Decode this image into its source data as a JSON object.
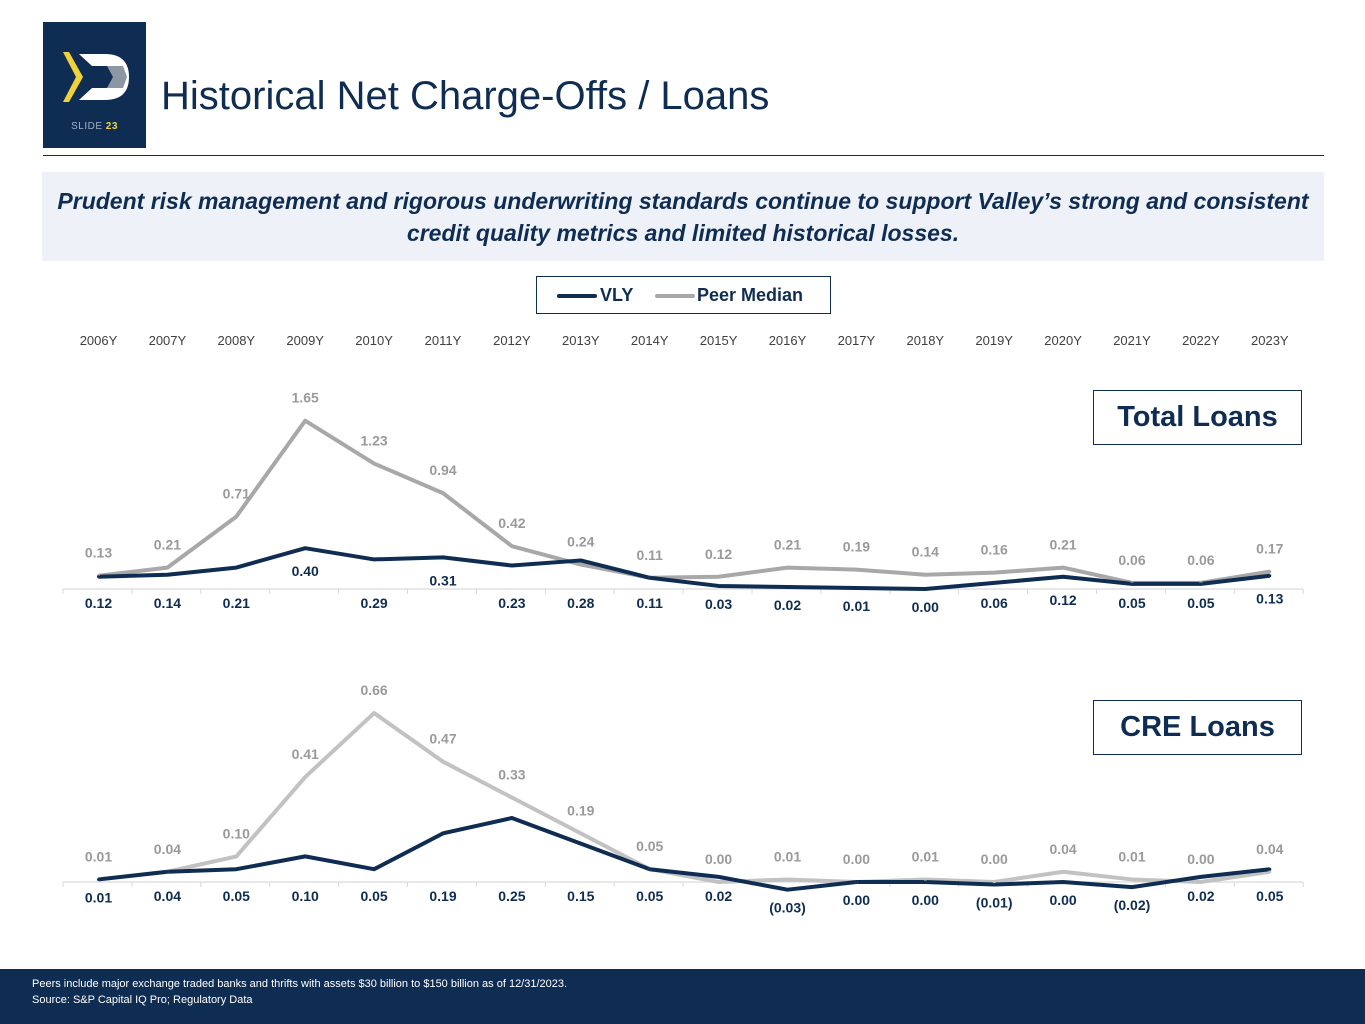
{
  "header": {
    "title": "Historical Net Charge-Offs / Loans",
    "slide_word": "SLIDE",
    "slide_number": "23"
  },
  "banner": {
    "text": "Prudent risk management and rigorous underwriting standards continue to support Valley’s strong and consistent credit quality metrics and limited historical losses."
  },
  "legend": {
    "vly_label": "VLY",
    "peer_label": "Peer Median"
  },
  "colors": {
    "navy": "#0f2d52",
    "peer_gray_total": "#a8a8a8",
    "peer_gray_cre": "#c2c2c2",
    "gold": "#f0d33a",
    "logo_gray": "#8c97a3"
  },
  "chart_data": [
    {
      "type": "line",
      "title": "Total Loans",
      "categories": [
        "2006Y",
        "2007Y",
        "2008Y",
        "2009Y",
        "2010Y",
        "2011Y",
        "2012Y",
        "2013Y",
        "2014Y",
        "2015Y",
        "2016Y",
        "2017Y",
        "2018Y",
        "2019Y",
        "2020Y",
        "2021Y",
        "2022Y",
        "2023Y"
      ],
      "series": [
        {
          "name": "VLY",
          "values": [
            0.12,
            0.14,
            0.21,
            0.4,
            0.29,
            0.31,
            0.23,
            0.28,
            0.11,
            0.03,
            0.02,
            0.01,
            0.0,
            0.06,
            0.12,
            0.05,
            0.05,
            0.13
          ],
          "labels": [
            "0.12",
            "0.14",
            "0.21",
            "0.40",
            "0.29",
            "0.31",
            "0.23",
            "0.28",
            "0.11",
            "0.03",
            "0.02",
            "0.01",
            "0.00",
            "0.06",
            "0.12",
            "0.05",
            "0.05",
            "0.13"
          ]
        },
        {
          "name": "Peer Median",
          "values": [
            0.13,
            0.21,
            0.71,
            1.65,
            1.23,
            0.94,
            0.42,
            0.24,
            0.11,
            0.12,
            0.21,
            0.19,
            0.14,
            0.16,
            0.21,
            0.06,
            0.06,
            0.17
          ],
          "labels": [
            "0.13",
            "0.21",
            "0.71",
            "1.65",
            "1.23",
            "0.94",
            "0.42",
            "0.24",
            "0.11",
            "0.12",
            "0.21",
            "0.19",
            "0.14",
            "0.16",
            "0.21",
            "0.06",
            "0.06",
            "0.17"
          ]
        }
      ],
      "ylim": [
        0,
        1.75
      ],
      "legend": "top-center"
    },
    {
      "type": "line",
      "title": "CRE Loans",
      "categories": [
        "2006Y",
        "2007Y",
        "2008Y",
        "2009Y",
        "2010Y",
        "2011Y",
        "2012Y",
        "2013Y",
        "2014Y",
        "2015Y",
        "2016Y",
        "2017Y",
        "2018Y",
        "2019Y",
        "2020Y",
        "2021Y",
        "2022Y",
        "2023Y"
      ],
      "series": [
        {
          "name": "VLY",
          "values": [
            0.01,
            0.04,
            0.05,
            0.1,
            0.05,
            0.19,
            0.25,
            0.15,
            0.05,
            0.02,
            -0.03,
            0.0,
            0.0,
            -0.01,
            0.0,
            -0.02,
            0.02,
            0.05
          ],
          "labels": [
            "0.01",
            "0.04",
            "0.05",
            "0.10",
            "0.05",
            "0.19",
            "0.25",
            "0.15",
            "0.05",
            "0.02",
            "(0.03)",
            "0.00",
            "0.00",
            "(0.01)",
            "0.00",
            "(0.02)",
            "0.02",
            "0.05"
          ]
        },
        {
          "name": "Peer Median",
          "values": [
            0.01,
            0.04,
            0.1,
            0.41,
            0.66,
            0.47,
            0.33,
            0.19,
            0.05,
            0.0,
            0.01,
            0.0,
            0.01,
            0.0,
            0.04,
            0.01,
            0.0,
            0.04
          ],
          "labels": [
            "0.01",
            "0.04",
            "0.10",
            "0.41",
            "0.66",
            "0.47",
            "0.33",
            "0.19",
            "0.05",
            "0.00",
            "0.01",
            "0.00",
            "0.01",
            "0.00",
            "0.04",
            "0.01",
            "0.00",
            "0.04"
          ]
        }
      ],
      "ylim": [
        -0.05,
        0.7
      ]
    }
  ],
  "footer": {
    "note": "Peers include major exchange traded banks and thrifts with assets $30 billion to $150 billion as of 12/31/2023.",
    "source": "Source: S&P Capital IQ Pro; Regulatory Data"
  }
}
